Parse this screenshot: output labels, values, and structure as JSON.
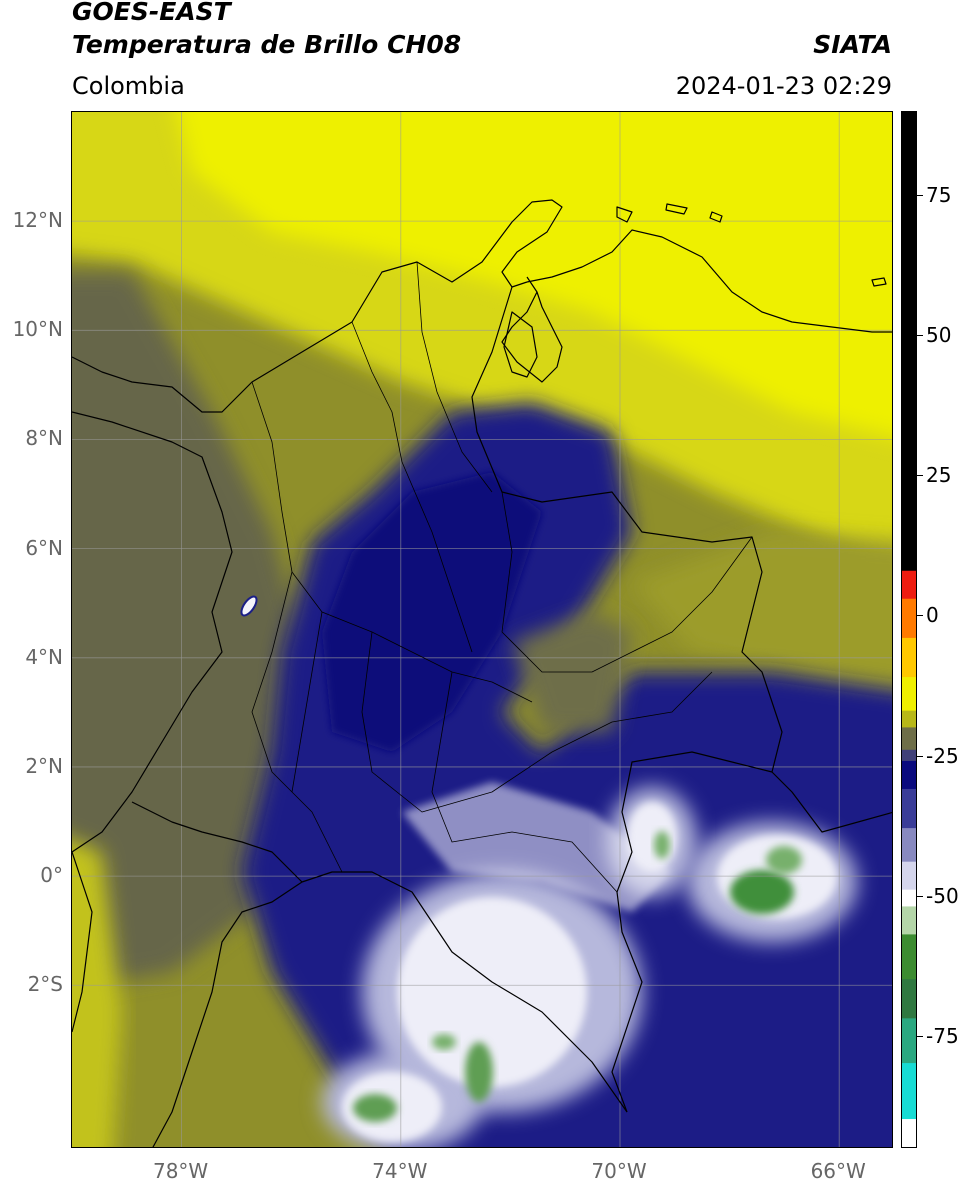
{
  "header": {
    "title_line1": "GOES-EAST",
    "title_line2": "Temperatura de Brillo CH08",
    "source": "SIATA",
    "region": "Colombia",
    "timestamp": "2024-01-23 02:29"
  },
  "map": {
    "lon_range": [
      -80,
      -65
    ],
    "lat_range": [
      -5,
      14
    ],
    "lat_ticks": [
      {
        "value": 12,
        "label": "12°N"
      },
      {
        "value": 10,
        "label": "10°N"
      },
      {
        "value": 8,
        "label": "8°N"
      },
      {
        "value": 6,
        "label": "6°N"
      },
      {
        "value": 4,
        "label": "4°N"
      },
      {
        "value": 2,
        "label": "2°N"
      },
      {
        "value": 0,
        "label": "0°"
      },
      {
        "value": -2,
        "label": "2°S"
      }
    ],
    "lon_ticks": [
      {
        "value": -78,
        "label": "78°W"
      },
      {
        "value": -74,
        "label": "74°W"
      },
      {
        "value": -70,
        "label": "70°W"
      },
      {
        "value": -66,
        "label": "66°W"
      }
    ],
    "grid": true,
    "colors": {
      "olive_dark": "#5e5e40",
      "olive": "#8f8f2a",
      "yellow": "#e4e412",
      "bright_yellow": "#f3f300",
      "navy": "#1b1f86",
      "deep_navy": "#0b0d7a",
      "lavender": "#b6b8dc",
      "white": "#f4f4fb",
      "green": "#3f8f3a"
    }
  },
  "colorbar": {
    "range": [
      -95,
      90
    ],
    "ticks": [
      {
        "value": 75,
        "label": "75"
      },
      {
        "value": 50,
        "label": "50"
      },
      {
        "value": 25,
        "label": "25"
      },
      {
        "value": 0,
        "label": "0"
      },
      {
        "value": -25,
        "label": "-25"
      },
      {
        "value": -50,
        "label": "-50"
      },
      {
        "value": -75,
        "label": "-75"
      }
    ],
    "segments": [
      {
        "from": 90,
        "to": 8,
        "color": "#000000"
      },
      {
        "from": 8,
        "to": 3,
        "color": "#ee1c10"
      },
      {
        "from": 3,
        "to": -4,
        "color": "#ff7a00"
      },
      {
        "from": -4,
        "to": -11,
        "color": "#ffc800"
      },
      {
        "from": -11,
        "to": -17,
        "color": "#f0f000"
      },
      {
        "from": -17,
        "to": -20,
        "color": "#b8b818"
      },
      {
        "from": -20,
        "to": -24,
        "color": "#6e6e48"
      },
      {
        "from": -24,
        "to": -26,
        "color": "#404078"
      },
      {
        "from": -26,
        "to": -31,
        "color": "#0a0a7e"
      },
      {
        "from": -31,
        "to": -38,
        "color": "#3a3c98"
      },
      {
        "from": -38,
        "to": -44,
        "color": "#8889c0"
      },
      {
        "from": -44,
        "to": -49,
        "color": "#d4d5ec"
      },
      {
        "from": -49,
        "to": -52,
        "color": "#ffffff"
      },
      {
        "from": -52,
        "to": -57,
        "color": "#b4d6a8"
      },
      {
        "from": -57,
        "to": -65,
        "color": "#3c8c30"
      },
      {
        "from": -65,
        "to": -72,
        "color": "#2f7840"
      },
      {
        "from": -72,
        "to": -80,
        "color": "#2aa880"
      },
      {
        "from": -80,
        "to": -90,
        "color": "#18dcd4"
      },
      {
        "from": -90,
        "to": -95,
        "color": "#ffffff"
      }
    ]
  }
}
